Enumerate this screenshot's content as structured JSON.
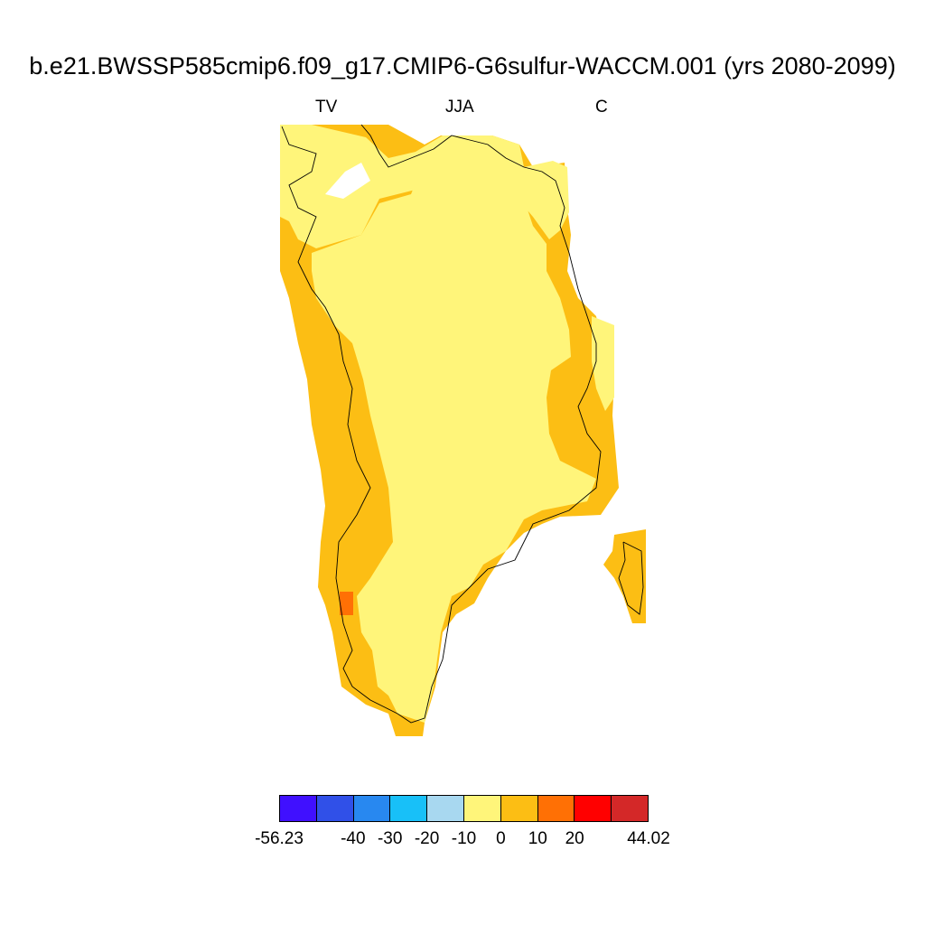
{
  "title": "b.e21.BWSSP585cmip6.f09_g17.CMIP6-G6sulfur-WACCM.001 (yrs 2080-2099)",
  "subtitle": {
    "left": "TV",
    "center": "JJA",
    "right": "C"
  },
  "colors": {
    "interior": "#fff57a",
    "margin": "#fcbe14",
    "hotspot": "#ff7005",
    "coastline": "#000000"
  },
  "colorbar": {
    "colors": [
      "#4010ff",
      "#3050e8",
      "#2888f0",
      "#18c0f8",
      "#a8d8f0",
      "#fff57a",
      "#fcbe14",
      "#ff7005",
      "#ff0000",
      "#d42828"
    ],
    "labels": [
      "-56.23",
      "-40",
      "-30",
      "-20",
      "-10",
      "0",
      "10",
      "20",
      "44.02"
    ]
  }
}
